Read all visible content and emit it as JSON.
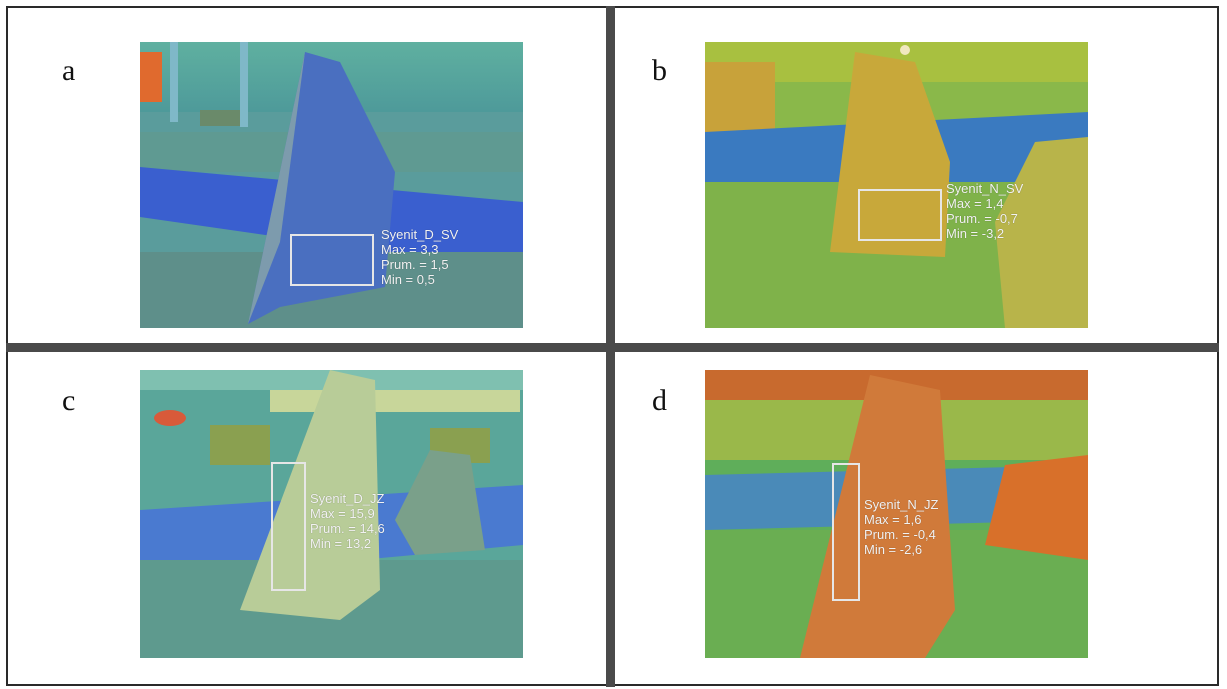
{
  "panels": [
    {
      "label": "a",
      "annotation": {
        "name": "Syenit_D_SV",
        "max": "Max = 3,3",
        "mean": "Prum. = 1,5",
        "min": "Min = 0,5"
      }
    },
    {
      "label": "b",
      "annotation": {
        "name": "Syenit_N_SV",
        "max": "Max = 1,4",
        "mean": "Prum. = -0,7",
        "min": "Min = -3,2"
      }
    },
    {
      "label": "c",
      "annotation": {
        "name": "Syenit_D_JZ",
        "max": "Max = 15,9",
        "mean": "Prum. = 14,6",
        "min": "Min = 13,2"
      }
    },
    {
      "label": "d",
      "annotation": {
        "name": "Syenit_N_JZ",
        "max": "Max = 1,6",
        "mean": "Prum. = -0,4",
        "min": "Min = -2,6"
      }
    }
  ],
  "colors": {
    "divider": "#4a4a4a",
    "annotation_text": "#f2f2f2",
    "palette_cold": "#3a6fd6",
    "palette_mid": "#5fae8a",
    "palette_warm": "#d96a2a"
  }
}
